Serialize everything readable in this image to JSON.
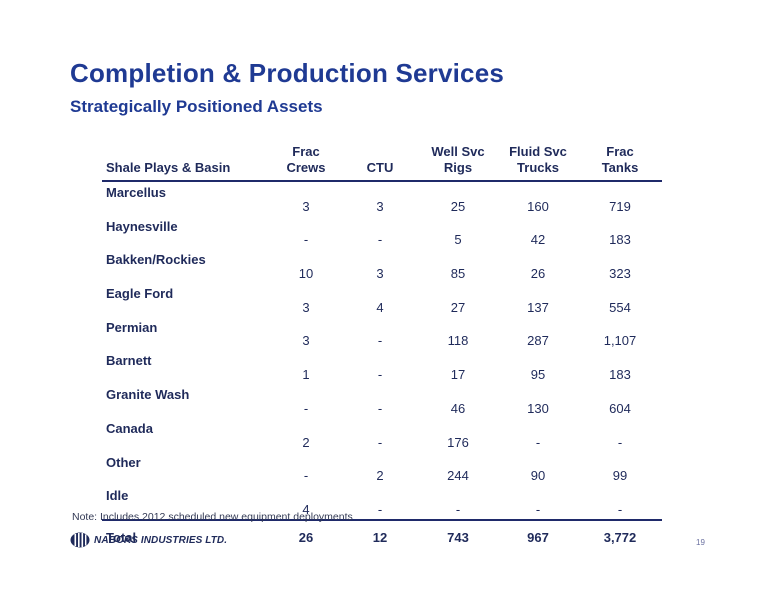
{
  "title": "Completion & Production Services",
  "subtitle": "Strategically Positioned Assets",
  "table": {
    "headers": [
      [
        "Shale Plays & Basin"
      ],
      [
        "Frac",
        "Crews"
      ],
      [
        "CTU"
      ],
      [
        "Well Svc",
        "Rigs"
      ],
      [
        "Fluid Svc",
        "Trucks"
      ],
      [
        "Frac",
        "Tanks"
      ]
    ],
    "rows": [
      [
        "Marcellus",
        "3",
        "3",
        "25",
        "160",
        "719"
      ],
      [
        "Haynesville",
        "-",
        "-",
        "5",
        "42",
        "183"
      ],
      [
        "Bakken/Rockies",
        "10",
        "3",
        "85",
        "26",
        "323"
      ],
      [
        "Eagle Ford",
        "3",
        "4",
        "27",
        "137",
        "554"
      ],
      [
        "Permian",
        "3",
        "-",
        "118",
        "287",
        "1,107"
      ],
      [
        "Barnett",
        "1",
        "-",
        "17",
        "95",
        "183"
      ],
      [
        "Granite Wash",
        "-",
        "-",
        "46",
        "130",
        "604"
      ],
      [
        "Canada",
        "2",
        "-",
        "176",
        "-",
        "-"
      ],
      [
        "Other",
        "-",
        "2",
        "244",
        "90",
        "99"
      ],
      [
        "Idle",
        "4",
        "-",
        "-",
        "-",
        "-"
      ]
    ],
    "total": [
      "Total",
      "26",
      "12",
      "743",
      "967",
      "3,772"
    ]
  },
  "note": "Note:  Includes 2012 scheduled new equipment deployments",
  "footer": {
    "company": "NABORS INDUSTRIES LTD.",
    "logo_icon": "nabors-logo-icon",
    "page_number": "19"
  },
  "colors": {
    "title": "#1f3a93",
    "text": "#1f2a5a",
    "rule": "#1f2a6a"
  }
}
